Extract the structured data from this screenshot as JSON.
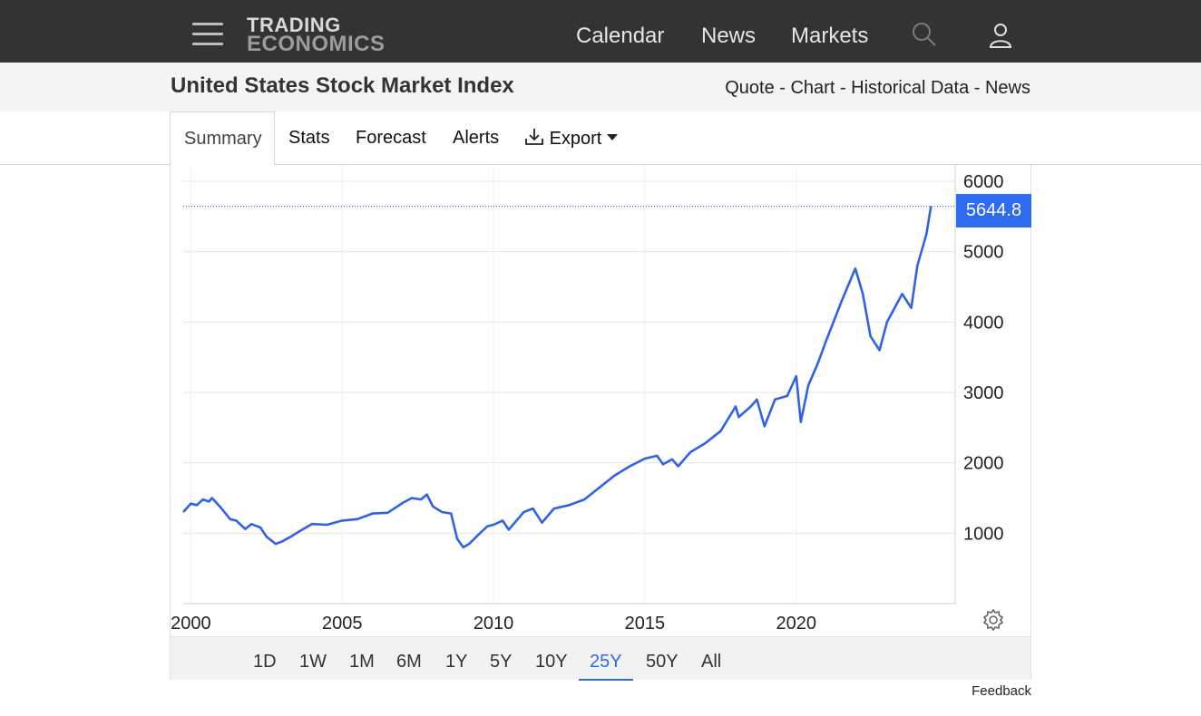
{
  "header": {
    "logo_line1": "TRADING",
    "logo_line2": "ECONOMICS",
    "nav": [
      "Calendar",
      "News",
      "Markets"
    ]
  },
  "page": {
    "title": "United States Stock Market Index",
    "links": [
      "Quote",
      "Chart",
      "Historical Data",
      "News"
    ]
  },
  "tabs": {
    "active": "Summary",
    "items": [
      "Stats",
      "Forecast",
      "Alerts"
    ],
    "export_label": "Export"
  },
  "ranges": {
    "items": [
      "1D",
      "1W",
      "1M",
      "6M",
      "1Y",
      "5Y",
      "10Y",
      "25Y",
      "50Y",
      "All"
    ],
    "active": "25Y"
  },
  "feedback": "Feedback",
  "colors": {
    "line": "#2f62e8",
    "topbar": "#333333",
    "accent": "#2f6bf0"
  },
  "chart_data": {
    "type": "line",
    "title": "",
    "xlabel": "",
    "ylabel": "",
    "x_ticks": [
      "2000",
      "2005",
      "2010",
      "2015",
      "2020"
    ],
    "y_ticks": [
      "1000",
      "2000",
      "3000",
      "4000",
      "5000",
      "6000"
    ],
    "xlim": [
      1999.75,
      2025.25
    ],
    "ylim": [
      0,
      6000
    ],
    "last_value": "5644.8",
    "series": [
      {
        "x": [
          1999.75,
          2000.0,
          2000.2,
          2000.4,
          2000.6,
          2000.7,
          2001.0,
          2001.3,
          2001.5,
          2001.8,
          2002.0,
          2002.3,
          2002.5,
          2002.8,
          2003.0,
          2003.3,
          2003.6,
          2004.0,
          2004.5,
          2005.0,
          2005.5,
          2006.0,
          2006.5,
          2007.0,
          2007.3,
          2007.6,
          2007.8,
          2008.0,
          2008.3,
          2008.6,
          2008.8,
          2009.0,
          2009.2,
          2009.5,
          2009.8,
          2010.0,
          2010.3,
          2010.5,
          2010.8,
          2011.0,
          2011.3,
          2011.6,
          2011.8,
          2012.0,
          2012.5,
          2013.0,
          2013.5,
          2014.0,
          2014.5,
          2015.0,
          2015.4,
          2015.6,
          2015.9,
          2016.1,
          2016.5,
          2017.0,
          2017.5,
          2018.0,
          2018.1,
          2018.5,
          2018.7,
          2018.95,
          2019.3,
          2019.7,
          2020.0,
          2020.15,
          2020.4,
          2020.7,
          2021.0,
          2021.5,
          2021.95,
          2022.2,
          2022.45,
          2022.75,
          2023.0,
          2023.5,
          2023.8,
          2024.0,
          2024.3,
          2024.45
        ],
        "y": [
          1300,
          1420,
          1400,
          1480,
          1450,
          1500,
          1360,
          1200,
          1180,
          1060,
          1130,
          1080,
          950,
          850,
          880,
          950,
          1030,
          1130,
          1120,
          1180,
          1200,
          1280,
          1290,
          1430,
          1500,
          1480,
          1550,
          1380,
          1300,
          1280,
          920,
          800,
          850,
          980,
          1100,
          1120,
          1180,
          1050,
          1200,
          1300,
          1350,
          1150,
          1250,
          1350,
          1400,
          1480,
          1650,
          1820,
          1950,
          2060,
          2100,
          1980,
          2050,
          1950,
          2150,
          2280,
          2450,
          2800,
          2650,
          2800,
          2900,
          2520,
          2900,
          2950,
          3230,
          2580,
          3100,
          3400,
          3750,
          4300,
          4760,
          4400,
          3800,
          3600,
          4000,
          4400,
          4200,
          4800,
          5250,
          5645
        ]
      }
    ]
  }
}
